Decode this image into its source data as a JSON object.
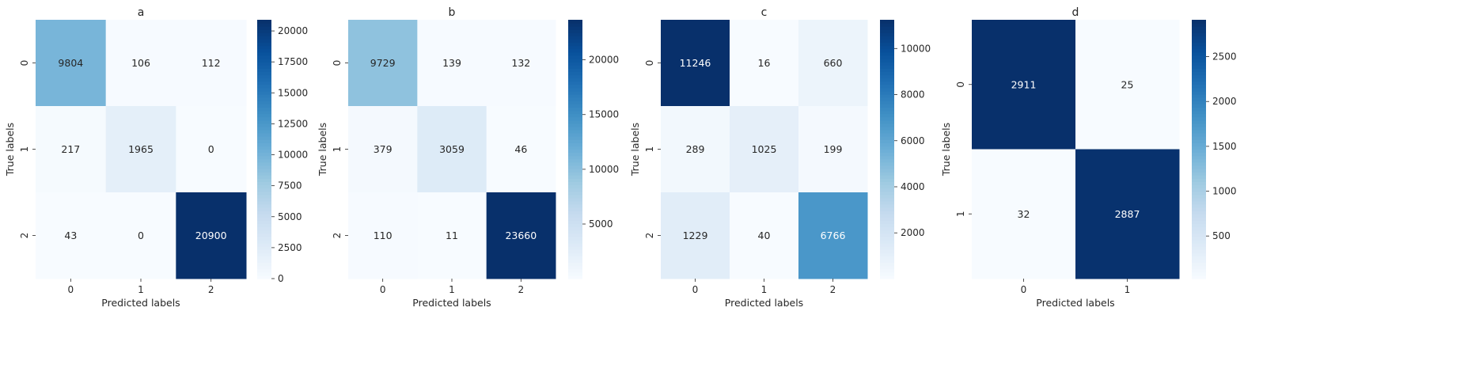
{
  "chart_data": [
    {
      "type": "heatmap",
      "title": "a",
      "xlabel": "Predicted labels",
      "ylabel": "True labels",
      "x_categories": [
        "0",
        "1",
        "2"
      ],
      "y_categories": [
        "0",
        "1",
        "2"
      ],
      "values": [
        [
          9804,
          106,
          112
        ],
        [
          217,
          1965,
          0
        ],
        [
          43,
          0,
          20900
        ]
      ],
      "colormap": "Blues",
      "colorbar": {
        "min": 0,
        "max": 20900,
        "ticks": [
          0,
          2500,
          5000,
          7500,
          10000,
          12500,
          15000,
          17500,
          20000
        ]
      },
      "dark_text_color": "#262626",
      "light_text_color": "#ffffff"
    },
    {
      "type": "heatmap",
      "title": "b",
      "xlabel": "Predicted labels",
      "ylabel": "True labels",
      "x_categories": [
        "0",
        "1",
        "2"
      ],
      "y_categories": [
        "0",
        "1",
        "2"
      ],
      "values": [
        [
          9729,
          139,
          132
        ],
        [
          379,
          3059,
          46
        ],
        [
          110,
          11,
          23660
        ]
      ],
      "colormap": "Blues",
      "colorbar": {
        "min": 11,
        "max": 23660,
        "ticks": [
          5000,
          10000,
          15000,
          20000
        ]
      },
      "dark_text_color": "#262626",
      "light_text_color": "#ffffff"
    },
    {
      "type": "heatmap",
      "title": "c",
      "xlabel": "Predicted labels",
      "ylabel": "True labels",
      "x_categories": [
        "0",
        "1",
        "2"
      ],
      "y_categories": [
        "0",
        "1",
        "2"
      ],
      "values": [
        [
          11246,
          16,
          660
        ],
        [
          289,
          1025,
          199
        ],
        [
          1229,
          40,
          6766
        ]
      ],
      "colormap": "Blues",
      "colorbar": {
        "min": 16,
        "max": 11246,
        "ticks": [
          2000,
          4000,
          6000,
          8000,
          10000
        ]
      },
      "dark_text_color": "#262626",
      "light_text_color": "#ffffff"
    },
    {
      "type": "heatmap",
      "title": "d",
      "xlabel": "Predicted labels",
      "ylabel": "True labels",
      "x_categories": [
        "0",
        "1"
      ],
      "y_categories": [
        "0",
        "1"
      ],
      "values": [
        [
          2911,
          25
        ],
        [
          32,
          2887
        ]
      ],
      "colormap": "Blues",
      "colorbar": {
        "min": 25,
        "max": 2911,
        "ticks": [
          500,
          1000,
          1500,
          2000,
          2500
        ]
      },
      "dark_text_color": "#262626",
      "light_text_color": "#ffffff"
    }
  ]
}
